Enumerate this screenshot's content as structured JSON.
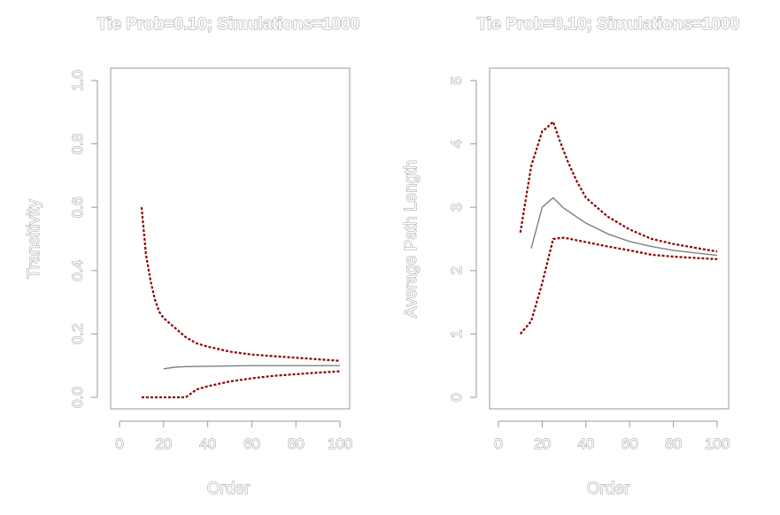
{
  "chart_data": [
    {
      "type": "line",
      "title": "Tie Prob=0.10; Simulations=1000",
      "xlabel": "Order",
      "ylabel": "Transitivity",
      "xlim": [
        0,
        100
      ],
      "ylim": [
        0,
        1
      ],
      "x_ticks": [
        "0",
        "20",
        "40",
        "60",
        "80",
        "100"
      ],
      "y_ticks": [
        "0.0",
        "0.2",
        "0.4",
        "0.6",
        "0.8",
        "1.0"
      ],
      "grid": false,
      "colors": {
        "mean": "#808080",
        "bounds": "#8b0000"
      },
      "series": [
        {
          "x": [
            10,
            12,
            14,
            16,
            18,
            20,
            25,
            30,
            35,
            40,
            50,
            60,
            70,
            80,
            90,
            100
          ],
          "y": [
            0.6,
            0.45,
            0.37,
            0.31,
            0.27,
            0.25,
            0.22,
            0.19,
            0.17,
            0.16,
            0.144,
            0.135,
            0.13,
            0.125,
            0.12,
            0.115
          ]
        },
        {
          "x": [
            20,
            25,
            30,
            40,
            50,
            60,
            70,
            80,
            90,
            100
          ],
          "y": [
            0.09,
            0.095,
            0.097,
            0.098,
            0.099,
            0.1,
            0.1,
            0.1,
            0.1,
            0.1
          ]
        },
        {
          "x": [
            10,
            20,
            30,
            35,
            40,
            50,
            60,
            70,
            80,
            90,
            100
          ],
          "y": [
            0.0,
            0.0,
            0.0,
            0.025,
            0.035,
            0.05,
            0.06,
            0.068,
            0.073,
            0.078,
            0.082
          ]
        }
      ]
    },
    {
      "type": "line",
      "title": "Tie Prob=0.10; Simulations=1000",
      "xlabel": "Order",
      "ylabel": "Average Path Length",
      "xlim": [
        0,
        100
      ],
      "ylim": [
        0,
        5
      ],
      "x_ticks": [
        "0",
        "20",
        "40",
        "60",
        "80",
        "100"
      ],
      "y_ticks": [
        "0",
        "1",
        "2",
        "3",
        "4",
        "5"
      ],
      "grid": false,
      "colors": {
        "mean": "#808080",
        "bounds": "#8b0000"
      },
      "series": [
        {
          "x": [
            10,
            15,
            20,
            22,
            25,
            28,
            32,
            36,
            40,
            50,
            60,
            70,
            80,
            90,
            100
          ],
          "y": [
            2.6,
            3.65,
            4.2,
            4.25,
            4.35,
            4.05,
            3.7,
            3.4,
            3.15,
            2.85,
            2.65,
            2.5,
            2.42,
            2.36,
            2.3
          ]
        },
        {
          "x": [
            15,
            20,
            25,
            30,
            40,
            50,
            60,
            70,
            80,
            90,
            100
          ],
          "y": [
            2.35,
            3.0,
            3.15,
            2.98,
            2.75,
            2.58,
            2.46,
            2.38,
            2.32,
            2.28,
            2.24
          ]
        },
        {
          "x": [
            10,
            15,
            20,
            25,
            30,
            40,
            50,
            60,
            70,
            80,
            90,
            100
          ],
          "y": [
            1.0,
            1.2,
            1.8,
            2.5,
            2.52,
            2.45,
            2.38,
            2.32,
            2.25,
            2.22,
            2.2,
            2.18
          ]
        }
      ]
    }
  ]
}
